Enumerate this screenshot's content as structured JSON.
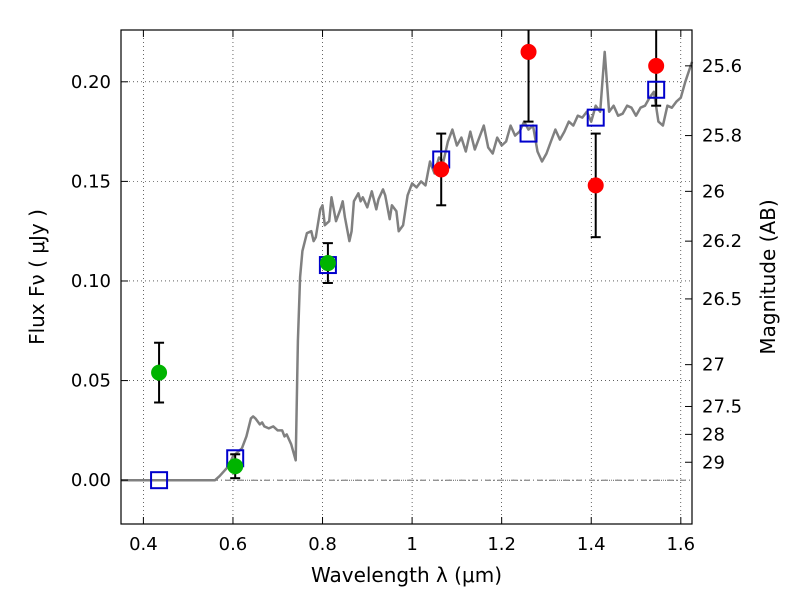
{
  "chart_data": {
    "type": "scatter",
    "xlabel": "Wavelength  λ (μm)",
    "ylabel": "Flux  Fν  ( μJy )",
    "y2label": "Magnitude (AB)",
    "xlim": [
      0.35,
      1.625
    ],
    "ylim": [
      -0.022,
      0.226
    ],
    "x_ticks": [
      0.4,
      0.6,
      0.8,
      1.0,
      1.2,
      1.4,
      1.6
    ],
    "x_tick_labels": [
      "0.4",
      "0.6",
      "0.8",
      "1",
      "1.2",
      "1.4",
      "1.6"
    ],
    "y_ticks": [
      0.0,
      0.05,
      0.1,
      0.15,
      0.2
    ],
    "y_tick_labels": [
      "0.00",
      "0.05",
      "0.10",
      "0.15",
      "0.20"
    ],
    "y2_ticks": [
      {
        "label": "25.6",
        "flux": 0.208
      },
      {
        "label": "25.8",
        "flux": 0.173
      },
      {
        "label": "26",
        "flux": 0.145
      },
      {
        "label": "26.2",
        "flux": 0.12
      },
      {
        "label": "26.5",
        "flux": 0.091
      },
      {
        "label": "27",
        "flux": 0.058
      },
      {
        "label": "27.5",
        "flux": 0.037
      },
      {
        "label": "28",
        "flux": 0.023
      },
      {
        "label": "29",
        "flux": 0.009
      }
    ],
    "grid": true,
    "zero_line": true,
    "colors": {
      "model": "#808080",
      "red_points": "#ff0000",
      "green_points": "#00b400",
      "squares": "#0000cc",
      "errorbars": "#000000"
    },
    "series": [
      {
        "marker": "line",
        "points": [
          [
            0.35,
            0.0
          ],
          [
            0.56,
            0.0
          ],
          [
            0.57,
            0.002
          ],
          [
            0.59,
            0.007
          ],
          [
            0.6,
            0.012
          ],
          [
            0.61,
            0.014
          ],
          [
            0.62,
            0.016
          ],
          [
            0.63,
            0.022
          ],
          [
            0.64,
            0.031
          ],
          [
            0.645,
            0.032
          ],
          [
            0.65,
            0.031
          ],
          [
            0.66,
            0.028
          ],
          [
            0.665,
            0.029
          ],
          [
            0.67,
            0.027
          ],
          [
            0.68,
            0.026
          ],
          [
            0.69,
            0.027
          ],
          [
            0.7,
            0.025
          ],
          [
            0.71,
            0.025
          ],
          [
            0.715,
            0.022
          ],
          [
            0.72,
            0.023
          ],
          [
            0.73,
            0.018
          ],
          [
            0.74,
            0.01
          ],
          [
            0.745,
            0.07
          ],
          [
            0.75,
            0.102
          ],
          [
            0.755,
            0.115
          ],
          [
            0.765,
            0.124
          ],
          [
            0.775,
            0.125
          ],
          [
            0.78,
            0.12
          ],
          [
            0.785,
            0.122
          ],
          [
            0.795,
            0.136
          ],
          [
            0.8,
            0.138
          ],
          [
            0.805,
            0.128
          ],
          [
            0.815,
            0.13
          ],
          [
            0.82,
            0.142
          ],
          [
            0.83,
            0.13
          ],
          [
            0.84,
            0.136
          ],
          [
            0.845,
            0.14
          ],
          [
            0.85,
            0.132
          ],
          [
            0.86,
            0.12
          ],
          [
            0.865,
            0.125
          ],
          [
            0.87,
            0.14
          ],
          [
            0.88,
            0.144
          ],
          [
            0.885,
            0.14
          ],
          [
            0.89,
            0.142
          ],
          [
            0.9,
            0.137
          ],
          [
            0.91,
            0.145
          ],
          [
            0.92,
            0.136
          ],
          [
            0.925,
            0.141
          ],
          [
            0.935,
            0.146
          ],
          [
            0.94,
            0.143
          ],
          [
            0.95,
            0.131
          ],
          [
            0.955,
            0.138
          ],
          [
            0.965,
            0.135
          ],
          [
            0.97,
            0.125
          ],
          [
            0.98,
            0.128
          ],
          [
            0.99,
            0.143
          ],
          [
            1.0,
            0.149
          ],
          [
            1.01,
            0.147
          ],
          [
            1.02,
            0.15
          ],
          [
            1.03,
            0.148
          ],
          [
            1.04,
            0.16
          ],
          [
            1.05,
            0.154
          ],
          [
            1.06,
            0.162
          ],
          [
            1.07,
            0.16
          ],
          [
            1.08,
            0.17
          ],
          [
            1.09,
            0.176
          ],
          [
            1.1,
            0.168
          ],
          [
            1.11,
            0.172
          ],
          [
            1.12,
            0.165
          ],
          [
            1.13,
            0.175
          ],
          [
            1.14,
            0.166
          ],
          [
            1.15,
            0.172
          ],
          [
            1.16,
            0.178
          ],
          [
            1.17,
            0.167
          ],
          [
            1.18,
            0.164
          ],
          [
            1.19,
            0.172
          ],
          [
            1.2,
            0.168
          ],
          [
            1.21,
            0.17
          ],
          [
            1.22,
            0.178
          ],
          [
            1.23,
            0.173
          ],
          [
            1.24,
            0.175
          ],
          [
            1.25,
            0.18
          ],
          [
            1.26,
            0.176
          ],
          [
            1.27,
            0.178
          ],
          [
            1.28,
            0.165
          ],
          [
            1.29,
            0.16
          ],
          [
            1.3,
            0.164
          ],
          [
            1.31,
            0.17
          ],
          [
            1.32,
            0.176
          ],
          [
            1.33,
            0.171
          ],
          [
            1.34,
            0.175
          ],
          [
            1.35,
            0.18
          ],
          [
            1.36,
            0.178
          ],
          [
            1.37,
            0.183
          ],
          [
            1.38,
            0.182
          ],
          [
            1.39,
            0.185
          ],
          [
            1.4,
            0.18
          ],
          [
            1.41,
            0.188
          ],
          [
            1.42,
            0.185
          ],
          [
            1.425,
            0.2
          ],
          [
            1.43,
            0.215
          ],
          [
            1.435,
            0.2
          ],
          [
            1.44,
            0.185
          ],
          [
            1.45,
            0.188
          ],
          [
            1.46,
            0.183
          ],
          [
            1.47,
            0.184
          ],
          [
            1.48,
            0.188
          ],
          [
            1.49,
            0.187
          ],
          [
            1.5,
            0.183
          ],
          [
            1.51,
            0.187
          ],
          [
            1.52,
            0.188
          ],
          [
            1.53,
            0.192
          ],
          [
            1.54,
            0.195
          ],
          [
            1.55,
            0.18
          ],
          [
            1.56,
            0.178
          ],
          [
            1.57,
            0.188
          ],
          [
            1.58,
            0.187
          ],
          [
            1.59,
            0.19
          ],
          [
            1.6,
            0.192
          ],
          [
            1.61,
            0.2
          ],
          [
            1.625,
            0.21
          ]
        ]
      },
      {
        "marker": "circle-red",
        "points": [
          {
            "x": 1.065,
            "y": 0.156,
            "err": 0.018
          },
          {
            "x": 1.26,
            "y": 0.215,
            "err": 0.035
          },
          {
            "x": 1.41,
            "y": 0.148,
            "err": 0.026
          },
          {
            "x": 1.545,
            "y": 0.208,
            "err": 0.02
          }
        ]
      },
      {
        "marker": "circle-green",
        "points": [
          {
            "x": 0.435,
            "y": 0.054,
            "err": 0.015
          },
          {
            "x": 0.605,
            "y": 0.007,
            "err": 0.006
          },
          {
            "x": 0.812,
            "y": 0.109,
            "err": 0.01
          }
        ]
      },
      {
        "marker": "square-blue",
        "points": [
          {
            "x": 0.435,
            "y": 0.0
          },
          {
            "x": 0.605,
            "y": 0.011
          },
          {
            "x": 0.812,
            "y": 0.108
          },
          {
            "x": 1.065,
            "y": 0.161
          },
          {
            "x": 1.26,
            "y": 0.174
          },
          {
            "x": 1.41,
            "y": 0.182
          },
          {
            "x": 1.545,
            "y": 0.196
          }
        ]
      }
    ]
  }
}
